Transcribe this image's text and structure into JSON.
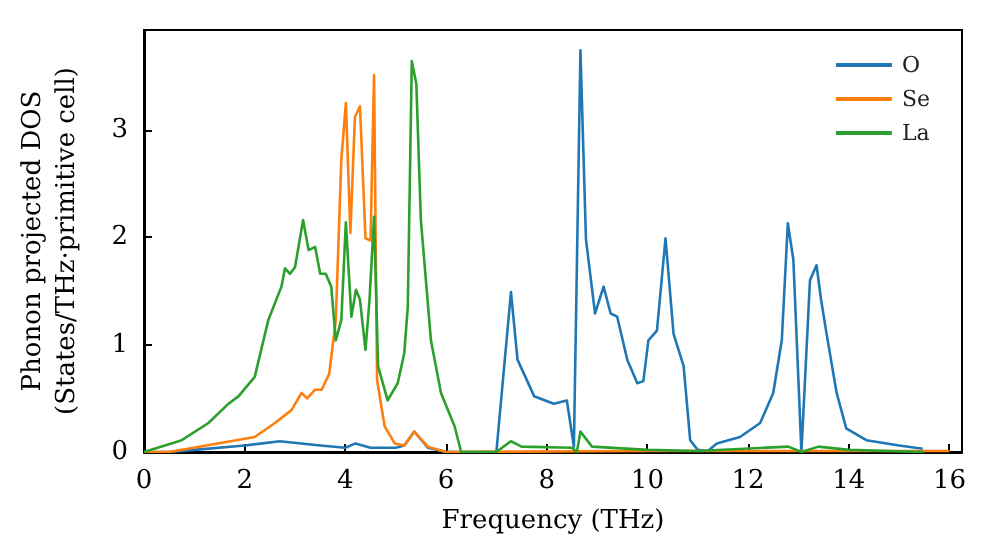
{
  "chart_data": {
    "type": "line",
    "xlabel": "Frequency (THz)",
    "ylabel": "Phonon projected DOS\n(States/THz·primitive cell)",
    "xlim": [
      0,
      16.25
    ],
    "ylim": [
      0,
      3.93
    ],
    "xticks": [
      0,
      2,
      4,
      6,
      8,
      10,
      12,
      14,
      16
    ],
    "yticks": [
      0,
      1,
      2,
      3
    ],
    "grid": false,
    "legend": "top right",
    "marker": "none",
    "line_style": "solid",
    "series": [
      {
        "name": "O",
        "color": "#1f77b4",
        "x": [
          0,
          0.5,
          1.0,
          2.0,
          2.7,
          3.5,
          4.0,
          4.2,
          4.5,
          5.0,
          5.17,
          5.37,
          5.64,
          6.0,
          7.0,
          7.29,
          7.42,
          7.75,
          8.14,
          8.4,
          8.54,
          8.67,
          8.78,
          8.96,
          9.13,
          9.27,
          9.4,
          9.6,
          9.8,
          9.92,
          10.02,
          10.19,
          10.36,
          10.52,
          10.72,
          10.85,
          11.0,
          11.2,
          11.38,
          11.84,
          12.24,
          12.5,
          12.67,
          12.79,
          12.9,
          13.06,
          13.23,
          13.36,
          13.45,
          13.56,
          13.76,
          13.95,
          14.35,
          15.0,
          15.47
        ],
        "values": [
          0,
          0,
          0.02,
          0.06,
          0.1,
          0.06,
          0.04,
          0.08,
          0.04,
          0.04,
          0.06,
          0.19,
          0.04,
          0,
          0,
          1.49,
          0.86,
          0.52,
          0.45,
          0.48,
          0.05,
          3.74,
          1.98,
          1.29,
          1.54,
          1.29,
          1.26,
          0.86,
          0.64,
          0.66,
          1.04,
          1.13,
          1.99,
          1.1,
          0.8,
          0.11,
          0.02,
          0.01,
          0.08,
          0.14,
          0.27,
          0.55,
          1.04,
          2.13,
          1.79,
          0,
          1.6,
          1.74,
          1.42,
          1.1,
          0.55,
          0.22,
          0.11,
          0.06,
          0.03
        ]
      },
      {
        "name": "Se",
        "color": "#ff7f0e",
        "x": [
          0,
          0.5,
          2.2,
          2.6,
          2.93,
          3.13,
          3.24,
          3.4,
          3.53,
          3.68,
          3.81,
          3.92,
          4.01,
          4.1,
          4.19,
          4.29,
          4.4,
          4.5,
          4.57,
          4.63,
          4.78,
          4.98,
          5.17,
          5.37,
          5.64,
          6.0,
          10.0,
          16.0
        ],
        "values": [
          0,
          0,
          0.14,
          0.27,
          0.39,
          0.55,
          0.5,
          0.58,
          0.58,
          0.73,
          1.23,
          2.72,
          3.25,
          2.04,
          3.12,
          3.22,
          1.99,
          1.97,
          3.51,
          0.67,
          0.24,
          0.08,
          0.06,
          0.19,
          0.05,
          0,
          0.01,
          0.01
        ]
      },
      {
        "name": "La",
        "color": "#2ca02c",
        "x": [
          0,
          0.75,
          1.28,
          1.68,
          1.88,
          2.2,
          2.47,
          2.73,
          2.8,
          2.9,
          3.0,
          3.16,
          3.27,
          3.4,
          3.5,
          3.61,
          3.72,
          3.81,
          3.92,
          4.01,
          4.12,
          4.21,
          4.29,
          4.4,
          4.48,
          4.57,
          4.65,
          4.84,
          5.04,
          5.17,
          5.24,
          5.32,
          5.41,
          5.5,
          5.7,
          5.9,
          6.17,
          6.3,
          7.0,
          7.29,
          7.5,
          8.5,
          8.6,
          8.67,
          8.9,
          10.0,
          11.0,
          12.8,
          13.06,
          13.4,
          14.0,
          15.5
        ],
        "values": [
          0,
          0.11,
          0.27,
          0.45,
          0.52,
          0.7,
          1.23,
          1.54,
          1.71,
          1.66,
          1.72,
          2.16,
          1.88,
          1.91,
          1.66,
          1.66,
          1.54,
          1.04,
          1.23,
          2.14,
          1.26,
          1.51,
          1.42,
          0.95,
          1.42,
          2.19,
          0.8,
          0.48,
          0.64,
          0.92,
          1.35,
          3.64,
          3.43,
          2.16,
          1.04,
          0.55,
          0.24,
          0,
          0,
          0.1,
          0.05,
          0.04,
          0,
          0.19,
          0.05,
          0.02,
          0.01,
          0.05,
          0,
          0.05,
          0.02,
          0
        ]
      }
    ]
  }
}
